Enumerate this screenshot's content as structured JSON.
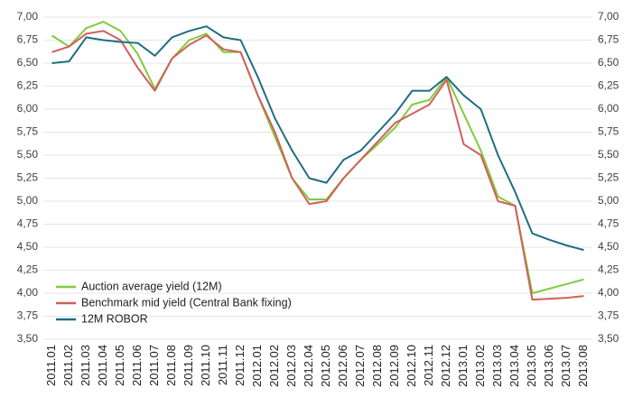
{
  "chart_data": {
    "type": "line",
    "categories": [
      "2011.01",
      "2011.02",
      "2011.03",
      "2011.04",
      "2011.05",
      "2011.06",
      "2011.07",
      "2011.08",
      "2011.09",
      "2011.10",
      "2011.11",
      "2011.12",
      "2012.01",
      "2012.02",
      "2012.03",
      "2012.04",
      "2012.05",
      "2012.06",
      "2012.07",
      "2012.08",
      "2012.09",
      "2012.10",
      "2012.11",
      "2012.12",
      "2013.01",
      "2013.02",
      "2013.03",
      "2013.04",
      "2013.05",
      "2013.06",
      "2013.07",
      "2013.08"
    ],
    "series": [
      {
        "name": "Auction average yield (12M)",
        "color": "#7fcc3f",
        "values": [
          6.8,
          6.68,
          6.88,
          6.95,
          6.85,
          6.6,
          6.22,
          6.55,
          6.75,
          6.82,
          6.62,
          6.62,
          6.15,
          5.7,
          5.25,
          5.02,
          5.02,
          5.25,
          5.45,
          5.62,
          5.8,
          6.05,
          6.1,
          6.35,
          5.95,
          5.55,
          5.05,
          4.95,
          4.0,
          4.05,
          4.1,
          4.15
        ]
      },
      {
        "name": "Benchmark mid yield (Central Bank fixing)",
        "color": "#d0605a",
        "values": [
          6.62,
          6.68,
          6.82,
          6.85,
          6.75,
          6.45,
          6.2,
          6.55,
          6.7,
          6.8,
          6.65,
          6.62,
          6.15,
          5.75,
          5.25,
          4.97,
          5.0,
          5.25,
          5.45,
          5.65,
          5.85,
          5.95,
          6.05,
          6.32,
          5.62,
          5.5,
          5.0,
          4.95,
          3.93,
          3.94,
          3.95,
          3.97
        ]
      },
      {
        "name": "12M ROBOR",
        "color": "#1f6e82",
        "values": [
          6.5,
          6.52,
          6.78,
          6.75,
          6.73,
          6.72,
          6.58,
          6.78,
          6.85,
          6.9,
          6.78,
          6.75,
          6.35,
          5.9,
          5.55,
          5.25,
          5.2,
          5.45,
          5.55,
          5.75,
          5.95,
          6.2,
          6.2,
          6.35,
          6.15,
          6.0,
          5.5,
          5.1,
          4.65,
          4.58,
          4.52,
          4.47
        ]
      }
    ],
    "ylim": [
      3.5,
      7.0
    ],
    "yticks": [
      {
        "value": 3.5,
        "label": "3,50"
      },
      {
        "value": 3.75,
        "label": "3,75"
      },
      {
        "value": 4.0,
        "label": "4,00"
      },
      {
        "value": 4.25,
        "label": "4,25"
      },
      {
        "value": 4.5,
        "label": "4,50"
      },
      {
        "value": 4.75,
        "label": "4,75"
      },
      {
        "value": 5.0,
        "label": "5,00"
      },
      {
        "value": 5.25,
        "label": "5,25"
      },
      {
        "value": 5.5,
        "label": "5,50"
      },
      {
        "value": 5.75,
        "label": "5,75"
      },
      {
        "value": 6.0,
        "label": "6,00"
      },
      {
        "value": 6.25,
        "label": "6,25"
      },
      {
        "value": 6.5,
        "label": "6,50"
      },
      {
        "value": 6.75,
        "label": "6,75"
      },
      {
        "value": 7.0,
        "label": "7,00"
      }
    ],
    "y2lim": [
      3.5,
      7.0
    ],
    "y2ticks": [
      {
        "value": 3.5,
        "label": "3,50"
      },
      {
        "value": 3.75,
        "label": "3,75"
      },
      {
        "value": 4.0,
        "label": "4,00"
      },
      {
        "value": 4.25,
        "label": "4,25"
      },
      {
        "value": 4.5,
        "label": "4,50"
      },
      {
        "value": 4.75,
        "label": "4,75"
      },
      {
        "value": 5.0,
        "label": "5,00"
      },
      {
        "value": 5.25,
        "label": "5,25"
      },
      {
        "value": 5.5,
        "label": "5,50"
      },
      {
        "value": 5.75,
        "label": "5,75"
      },
      {
        "value": 6.0,
        "label": "6,00"
      },
      {
        "value": 6.25,
        "label": "6,25"
      },
      {
        "value": 6.5,
        "label": "6,50"
      },
      {
        "value": 6.75,
        "label": "6,75"
      },
      {
        "value": 7.0,
        "label": "7,00"
      }
    ],
    "grid": true,
    "legend": "lower left"
  }
}
